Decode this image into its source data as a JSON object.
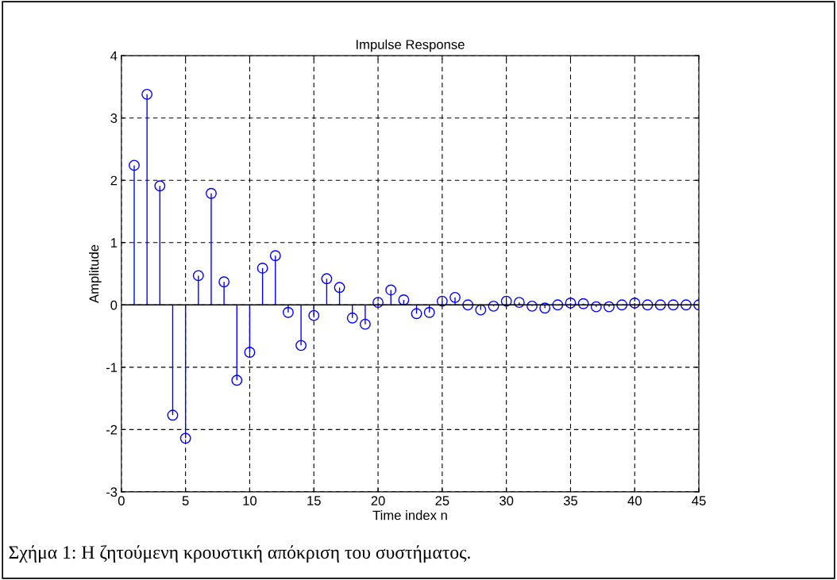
{
  "chart_data": {
    "type": "lollipop",
    "title": "Impulse Response",
    "xlabel": "Time index n",
    "ylabel": "Amplitude",
    "x": [
      1,
      2,
      3,
      4,
      5,
      6,
      7,
      8,
      9,
      10,
      11,
      12,
      13,
      14,
      15,
      16,
      17,
      18,
      19,
      20,
      21,
      22,
      23,
      24,
      25,
      26,
      27,
      28,
      29,
      30,
      31,
      32,
      33,
      34,
      35,
      36,
      37,
      38,
      39,
      40,
      41,
      42,
      43,
      44,
      45
    ],
    "series": [
      {
        "color": "#0000ff",
        "values": [
          2.24,
          3.38,
          1.91,
          -1.77,
          -2.14,
          0.47,
          1.79,
          0.37,
          -1.21,
          -0.76,
          0.59,
          0.79,
          -0.12,
          -0.65,
          -0.17,
          0.42,
          0.28,
          -0.21,
          -0.31,
          0.04,
          0.24,
          0.08,
          -0.14,
          -0.12,
          0.06,
          0.12,
          0,
          -0.08,
          -0.02,
          0.06,
          0.04,
          -0.02,
          -0.05,
          0,
          0.03,
          0.02,
          -0.03,
          -0.03,
          0,
          0.03,
          0,
          0,
          0,
          0,
          0
        ]
      }
    ],
    "xlim": [
      0,
      45
    ],
    "xticks": [
      0,
      5,
      10,
      15,
      20,
      25,
      30,
      35,
      40,
      45
    ],
    "ylim": [
      -3,
      4
    ],
    "yticks": [
      -3,
      -2,
      -1,
      0,
      1,
      2,
      3,
      4
    ],
    "grid": true,
    "marker": "circle",
    "line_style": "solid",
    "legend": false,
    "annotations": [
      "Σχήμα 1: Η ζητούμενη κρουστική απόκριση του συστήματος."
    ]
  }
}
